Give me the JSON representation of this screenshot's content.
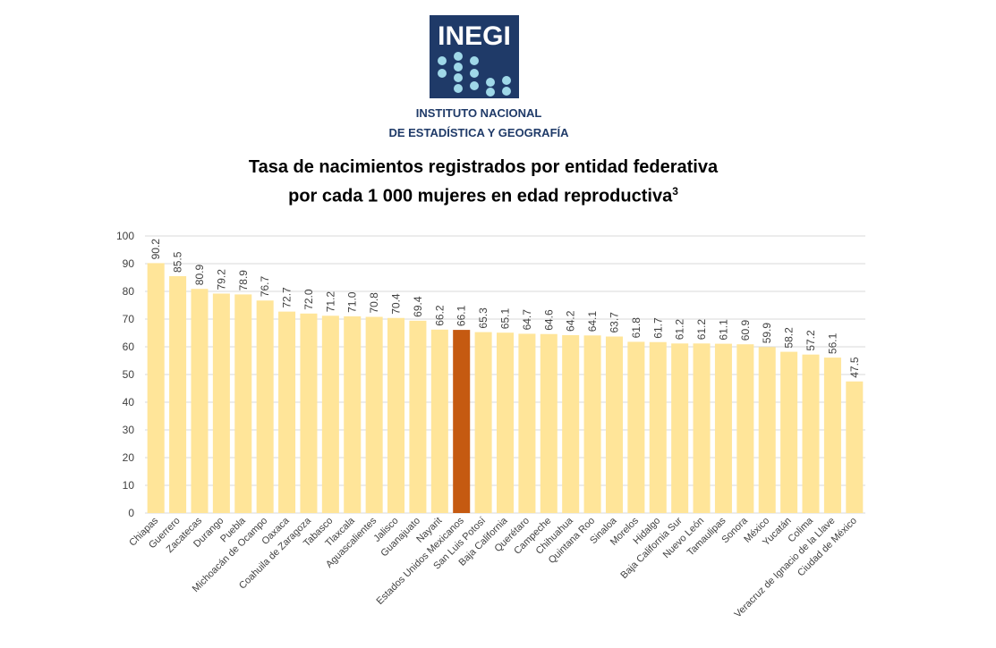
{
  "logo": {
    "name": "INEGI",
    "line1": "INSTITUTO NACIONAL",
    "line2": "DE ESTADÍSTICA Y GEOGRAFÍA"
  },
  "chart_title": {
    "line1": "Tasa de nacimientos registrados por entidad federativa",
    "line2": "por cada 1 000 mujeres en edad reproductiva",
    "footnote": "3"
  },
  "colors": {
    "bar": "#FFE599",
    "highlight": "#C55A11",
    "grid": "#D9D9D9",
    "text": "#404040"
  },
  "chart_data": {
    "type": "bar",
    "title": "Tasa de nacimientos registrados por entidad federativa por cada 1 000 mujeres en edad reproductiva",
    "categories": [
      "Chiapas",
      "Guerrero",
      "Zacatecas",
      "Durango",
      "Puebla",
      "Michoacán de Ocampo",
      "Oaxaca",
      "Coahuila de Zaragoza",
      "Tabasco",
      "Tlaxcala",
      "Aguascalientes",
      "Jalisco",
      "Guanajuato",
      "Nayarit",
      "Estados Unidos Mexicanos",
      "San Luis Potosí",
      "Baja California",
      "Querétaro",
      "Campeche",
      "Chihuahua",
      "Quintana Roo",
      "Sinaloa",
      "Morelos",
      "Hidalgo",
      "Baja California Sur",
      "Nuevo León",
      "Tamaulipas",
      "Sonora",
      "México",
      "Yucatán",
      "Colima",
      "Veracruz de Ignacio de la Llave",
      "Ciudad de México"
    ],
    "values": [
      90.2,
      85.5,
      80.9,
      79.2,
      78.9,
      76.7,
      72.7,
      72.0,
      71.2,
      71.0,
      70.8,
      70.4,
      69.4,
      66.2,
      66.1,
      65.3,
      65.1,
      64.7,
      64.6,
      64.2,
      64.1,
      63.7,
      61.8,
      61.7,
      61.2,
      61.2,
      61.1,
      60.9,
      59.9,
      58.2,
      57.2,
      56.1,
      47.5
    ],
    "value_labels": [
      "90.2",
      "85.5",
      "80.9",
      "79.2",
      "78.9",
      "76.7",
      "72.7",
      "72.0",
      "71.2",
      "71.0",
      "70.8",
      "70.4",
      "69.4",
      "66.2",
      "66.1",
      "65.3",
      "65.1",
      "64.7",
      "64.6",
      "64.2",
      "64.1",
      "63.7",
      "61.8",
      "61.7",
      "61.2",
      "61.2",
      "61.1",
      "60.9",
      "59.9",
      "58.2",
      "57.2",
      "56.1",
      "47.5"
    ],
    "highlight_category": "Estados Unidos Mexicanos",
    "yticks": [
      "0",
      "10",
      "20",
      "30",
      "40",
      "50",
      "60",
      "70",
      "80",
      "90",
      "100"
    ],
    "ylim": [
      0,
      100
    ],
    "grid": true,
    "legend": "none"
  }
}
